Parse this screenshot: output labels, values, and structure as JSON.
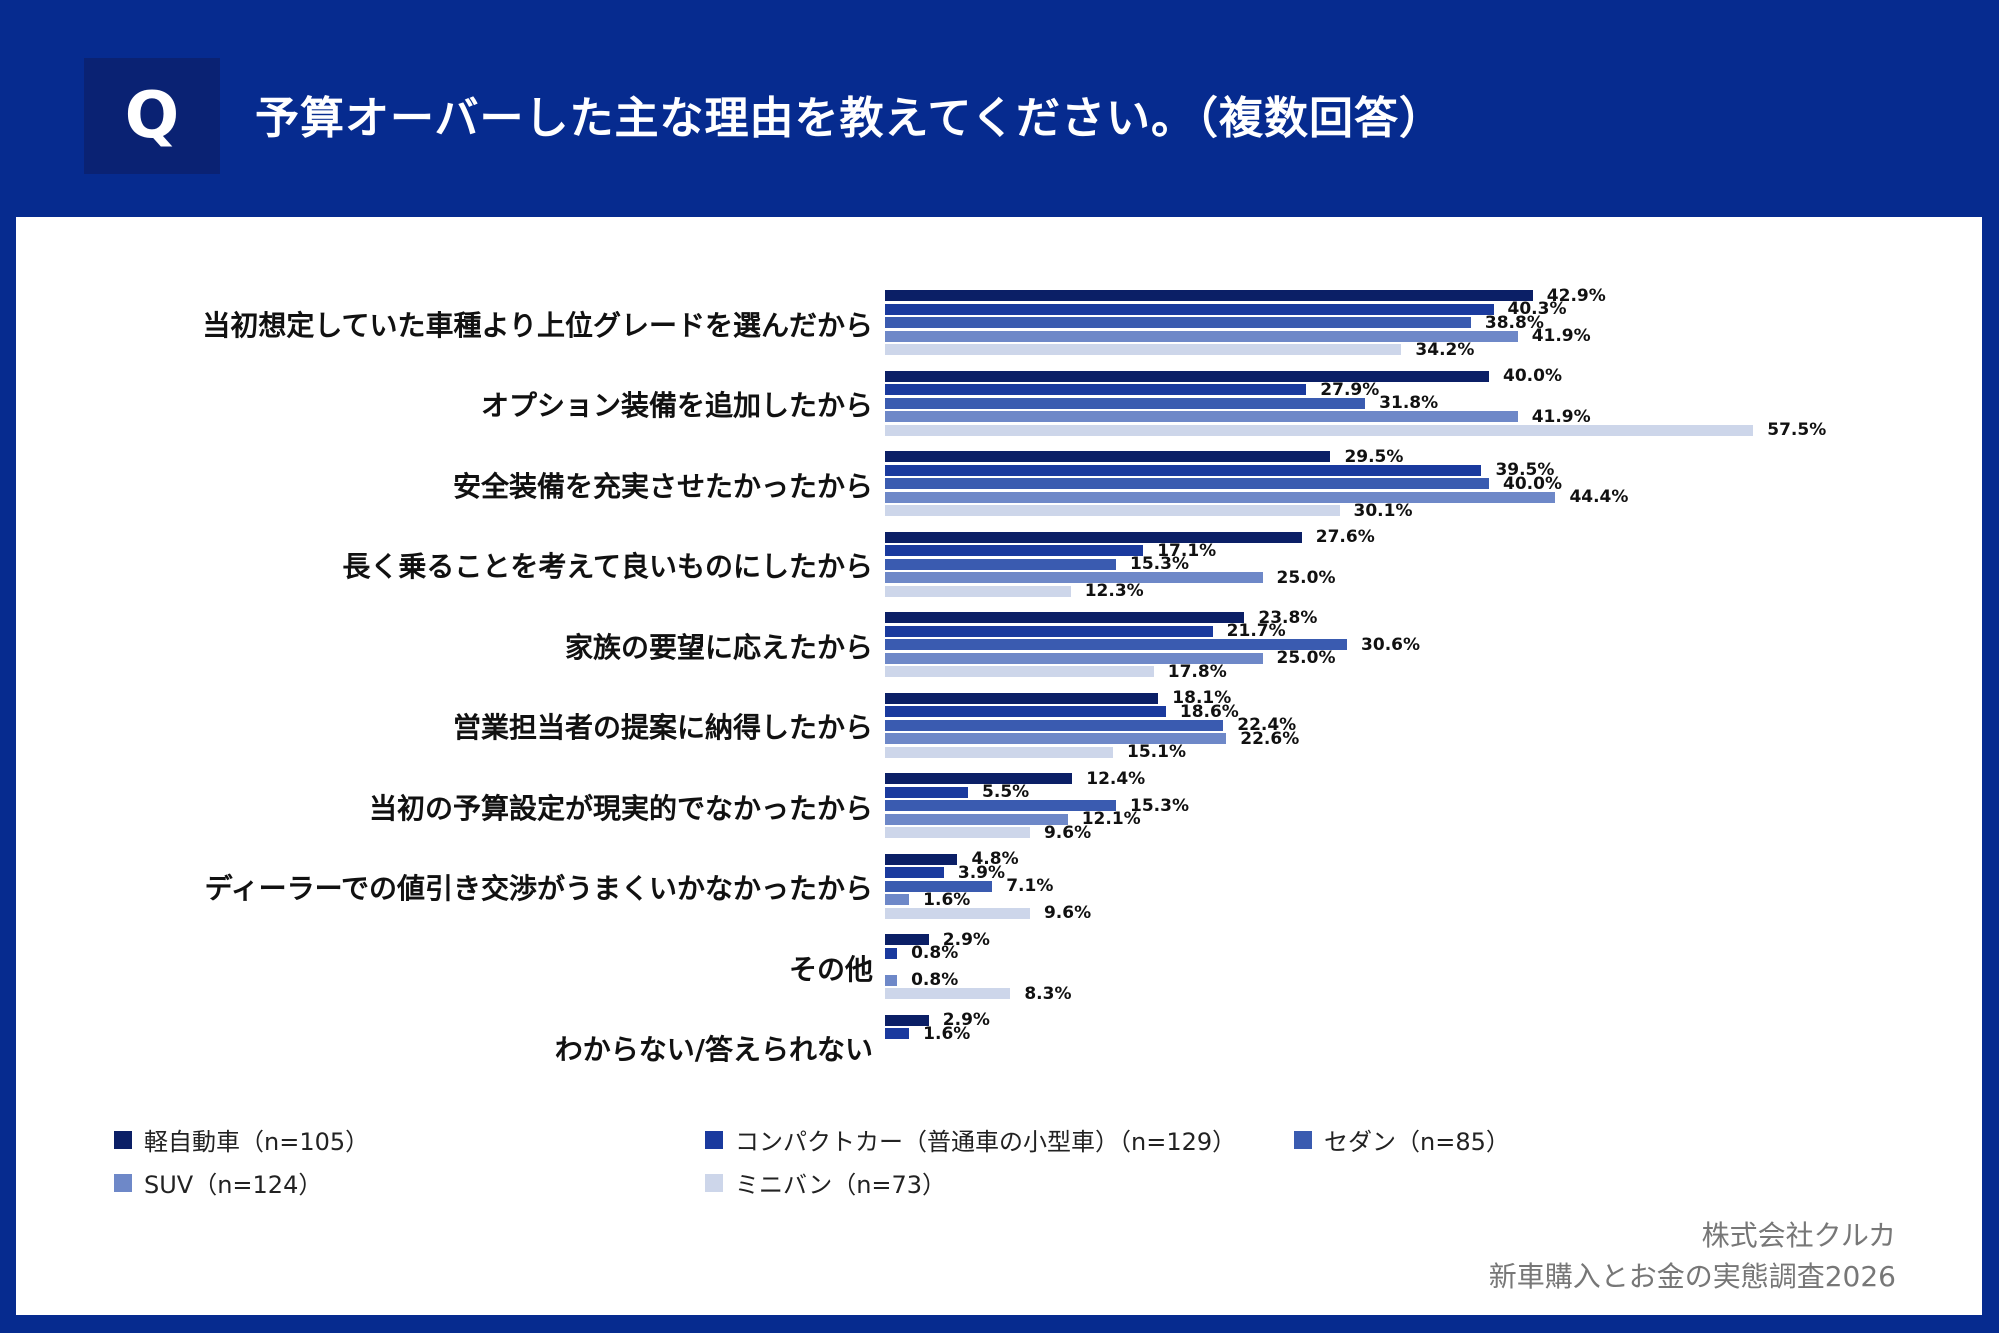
{
  "header": {
    "q_mark": "Q",
    "title": "予算オーバーした主な理由を教えてください。（複数回答）"
  },
  "credit": {
    "company": "株式会社クルカ",
    "survey": "新車購入とお金の実態調査2026"
  },
  "colors": {
    "background": "#062b8f",
    "panel": "#ffffff"
  },
  "chart_data": {
    "type": "bar",
    "orientation": "horizontal",
    "title": "予算オーバーした主な理由を教えてください。（複数回答）",
    "categories": [
      "当初想定していた車種より上位グレードを選んだから",
      "オプション装備を追加したから",
      "安全装備を充実させたかったから",
      "長く乗ることを考えて良いものにしたから",
      "家族の要望に応えたから",
      "営業担当者の提案に納得したから",
      "当初の予算設定が現実的でなかったから",
      "ディーラーでの値引き交渉がうまくいかなかったから",
      "その他",
      "わからない/答えられない"
    ],
    "unit": "%",
    "xlim": [
      0,
      60
    ],
    "series": [
      {
        "name": "軽自動車（n=105）",
        "color": "#0b1f66",
        "values": [
          42.9,
          40.0,
          29.5,
          27.6,
          23.8,
          18.1,
          12.4,
          4.8,
          2.9,
          2.9
        ]
      },
      {
        "name": "コンパクトカー（普通車の小型車）（n=129）",
        "color": "#1a3a9e",
        "values": [
          40.3,
          27.9,
          39.5,
          17.1,
          21.7,
          18.6,
          5.5,
          3.9,
          0.8,
          1.6
        ]
      },
      {
        "name": "セダン（n=85）",
        "color": "#3a5bb0",
        "values": [
          38.8,
          31.8,
          40.0,
          15.3,
          30.6,
          22.4,
          15.3,
          7.1,
          null,
          null
        ]
      },
      {
        "name": "SUV（n=124）",
        "color": "#6e88c8",
        "values": [
          41.9,
          41.9,
          44.4,
          25.0,
          25.0,
          22.6,
          12.1,
          1.6,
          0.8,
          null
        ]
      },
      {
        "name": "ミニバン（n=73）",
        "color": "#cdd6ea",
        "values": [
          34.2,
          57.5,
          30.1,
          12.3,
          17.8,
          15.1,
          9.6,
          9.6,
          8.3,
          null
        ]
      }
    ],
    "legend": "bottom"
  }
}
